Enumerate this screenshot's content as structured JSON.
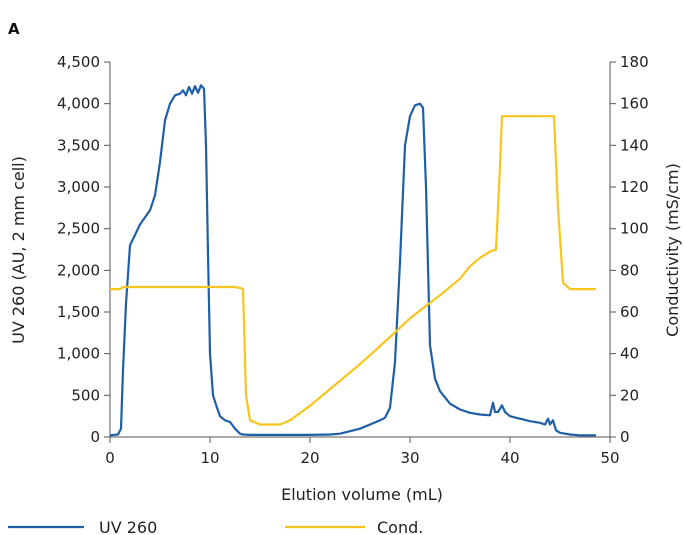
{
  "chart_data": {
    "type": "line",
    "panel_label": "A",
    "xlabel": "Elution volume (mL)",
    "ylabel": "UV 260 (AU, 2 mm cell)",
    "y2label": "Conductivity (mS/cm)",
    "xlim": [
      0,
      50
    ],
    "ylim": [
      0,
      4500
    ],
    "y2lim": [
      0,
      180
    ],
    "x_ticks": [
      "0",
      "10",
      "20",
      "30",
      "40",
      "50"
    ],
    "y_ticks": [
      "0",
      "500",
      "1,000",
      "1,500",
      "2,000",
      "2,500",
      "3,000",
      "3,500",
      "4,000",
      "4,500"
    ],
    "y2_ticks": [
      "0",
      "20",
      "40",
      "60",
      "80",
      "100",
      "120",
      "140",
      "160",
      "180"
    ],
    "grid": false,
    "legend_position": "bottom",
    "colors": {
      "uv": "#1f5fa6",
      "cond": "#f7c51e"
    },
    "series": [
      {
        "name": "UV 260",
        "axis": "left",
        "x": [
          0,
          0.8,
          1.1,
          1.3,
          1.6,
          2,
          3,
          4,
          4.5,
          5,
          5.5,
          6,
          6.5,
          7,
          7.3,
          7.6,
          7.9,
          8.2,
          8.5,
          8.8,
          9.1,
          9.4,
          9.6,
          9.8,
          10,
          10.3,
          10.7,
          11,
          11.5,
          12,
          12.5,
          13,
          13.3,
          14,
          16,
          18,
          20,
          22,
          23,
          24,
          25,
          26,
          27,
          27.5,
          28,
          28.5,
          29,
          29.5,
          30,
          30.5,
          31,
          31.3,
          31.6,
          32,
          32.5,
          33,
          34,
          35,
          36,
          37,
          38,
          38.3,
          38.5,
          38.8,
          39.2,
          39.5,
          40,
          41,
          42,
          43,
          43.5,
          43.8,
          44,
          44.3,
          44.6,
          45,
          46,
          47,
          48,
          48.6
        ],
        "values": [
          20,
          30,
          100,
          800,
          1600,
          2300,
          2550,
          2720,
          2900,
          3300,
          3800,
          4000,
          4100,
          4120,
          4160,
          4100,
          4200,
          4120,
          4210,
          4130,
          4220,
          4180,
          3500,
          2200,
          1000,
          500,
          350,
          250,
          200,
          180,
          100,
          40,
          30,
          25,
          25,
          25,
          25,
          30,
          40,
          70,
          100,
          150,
          200,
          230,
          350,
          900,
          2100,
          3500,
          3850,
          3980,
          4000,
          3950,
          3000,
          1100,
          700,
          550,
          400,
          330,
          290,
          270,
          260,
          410,
          300,
          300,
          380,
          300,
          250,
          220,
          190,
          170,
          150,
          220,
          150,
          200,
          80,
          50,
          30,
          20,
          20,
          20
        ]
      },
      {
        "name": "Cond.",
        "axis": "right",
        "x": [
          0,
          1,
          1.3,
          2,
          12.5,
          13,
          13.3,
          13.6,
          14,
          15,
          17,
          18,
          20,
          22,
          25,
          28,
          30,
          33,
          35,
          36,
          37,
          38,
          38.6,
          39,
          39.2,
          40,
          44.4,
          44.8,
          45.3,
          46,
          47,
          48.6
        ],
        "values": [
          71,
          71,
          72,
          72,
          72,
          71.5,
          71,
          20,
          8,
          6,
          6,
          8,
          15,
          23,
          35,
          48,
          57,
          68,
          76,
          82,
          86,
          89,
          90,
          130,
          154,
          154,
          154,
          110,
          74,
          71,
          71,
          71
        ]
      }
    ]
  }
}
